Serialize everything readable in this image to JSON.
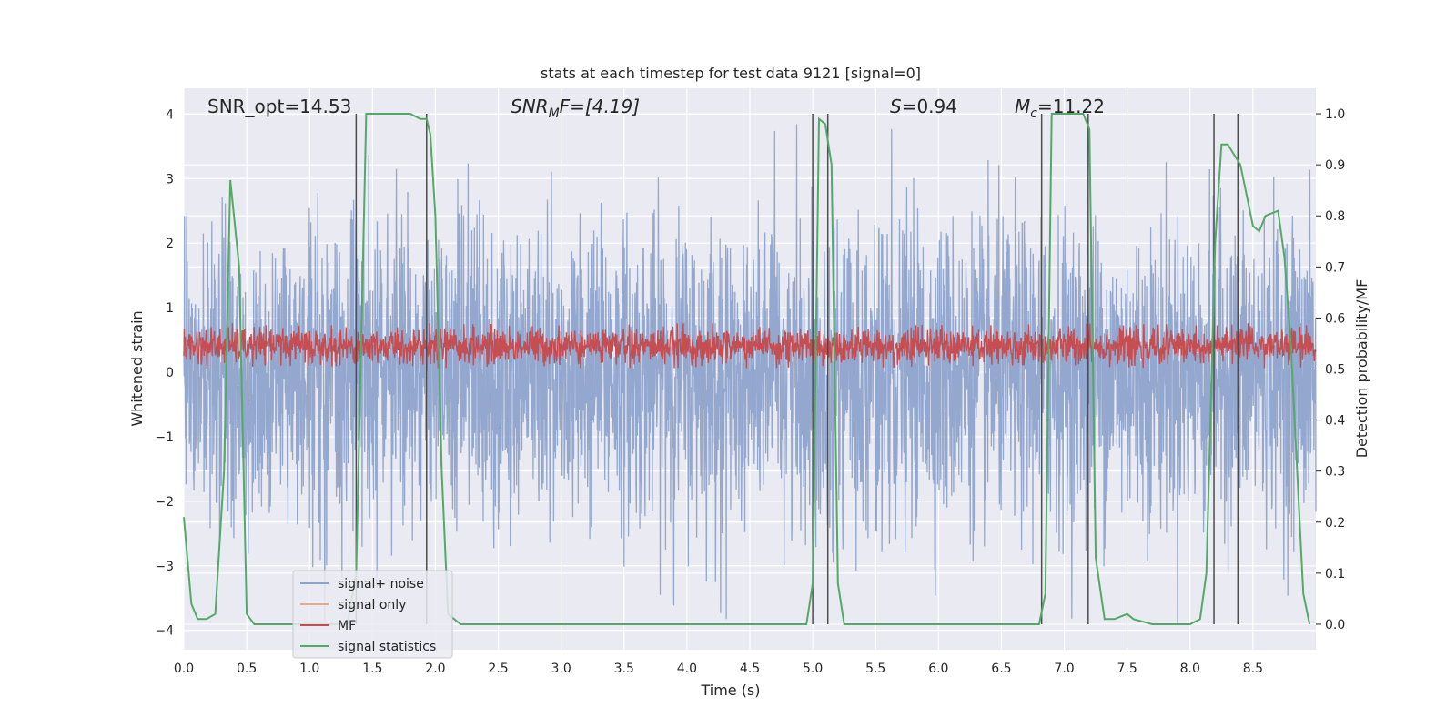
{
  "chart_data": {
    "type": "line",
    "title": "stats at each timestep for test data 9121 [signal=0]",
    "xlabel": "Time (s)",
    "ylabel": "Whitened strain",
    "y2label": "Detection probability/MF",
    "xlim": [
      0,
      9.0
    ],
    "ylim": [
      -4.3,
      4.4
    ],
    "y2lim": [
      -0.05,
      1.05
    ],
    "xticks": [
      0.0,
      0.5,
      1.0,
      1.5,
      2.0,
      2.5,
      3.0,
      3.5,
      4.0,
      4.5,
      5.0,
      5.5,
      6.0,
      6.5,
      7.0,
      7.5,
      8.0,
      8.5
    ],
    "xtick_labels": [
      "0.0",
      "0.5",
      "1.0",
      "1.5",
      "2.0",
      "2.5",
      "3.0",
      "3.5",
      "4.0",
      "4.5",
      "5.0",
      "5.5",
      "6.0",
      "6.5",
      "7.0",
      "7.5",
      "8.0",
      "8.5"
    ],
    "yticks": [
      -4,
      -3,
      -2,
      -1,
      0,
      1,
      2,
      3,
      4
    ],
    "ytick_labels": [
      "−4",
      "−3",
      "−2",
      "−1",
      "0",
      "1",
      "2",
      "3",
      "4"
    ],
    "y2ticks": [
      0.0,
      0.1,
      0.2,
      0.3,
      0.4,
      0.5,
      0.6,
      0.7,
      0.8,
      0.9,
      1.0
    ],
    "y2tick_labels": [
      "0.0",
      "0.1",
      "0.2",
      "0.3",
      "0.4",
      "0.5",
      "0.6",
      "0.7",
      "0.8",
      "0.9",
      "1.0"
    ],
    "grid": true,
    "legend_position": "lower-left",
    "annotations": {
      "snr_opt": "SNR_opt=14.53",
      "snr_mf_sym": "SNR",
      "snr_mf_sub": "M",
      "snr_mf_rest": "F=[4.19]",
      "s_sym": "S",
      "s_rest": "=0.94",
      "mc_sym": "M",
      "mc_sub": "c",
      "mc_rest": "=11.22"
    },
    "noise_envelope": {
      "description": "signal+noise whitened strain, dense noise band",
      "core_range": [
        -2.2,
        2.2
      ],
      "peak_range": [
        -3.9,
        3.9
      ]
    },
    "series": [
      {
        "name": "signal+ noise",
        "color": "#8ea3cc",
        "axis": "left",
        "kind": "noise",
        "band": [
          -3.9,
          3.9
        ]
      },
      {
        "name": "signal only",
        "color": "#e8a98b",
        "axis": "left",
        "kind": "line",
        "x": [],
        "y": []
      },
      {
        "name": "MF",
        "color": "#c44e52",
        "axis": "right",
        "kind": "noise",
        "band": [
          0.5,
          0.59
        ]
      },
      {
        "name": "signal statistics",
        "color": "#55a868",
        "axis": "right",
        "kind": "line",
        "x": [
          0.0,
          0.06,
          0.11,
          0.18,
          0.25,
          0.32,
          0.37,
          0.44,
          0.5,
          0.56,
          0.7,
          0.9,
          1.1,
          1.3,
          1.37,
          1.45,
          1.5,
          1.6,
          1.7,
          1.8,
          1.88,
          1.93,
          1.96,
          2.0,
          2.05,
          2.1,
          2.2,
          2.5,
          3.0,
          3.5,
          4.0,
          4.5,
          4.95,
          5.0,
          5.05,
          5.1,
          5.15,
          5.2,
          5.25,
          5.4,
          5.8,
          6.2,
          6.6,
          6.8,
          6.85,
          6.9,
          6.95,
          7.05,
          7.1,
          7.15,
          7.2,
          7.25,
          7.32,
          7.4,
          7.5,
          7.55,
          7.7,
          7.8,
          7.9,
          8.0,
          8.08,
          8.13,
          8.2,
          8.25,
          8.3,
          8.4,
          8.5,
          8.55,
          8.6,
          8.7,
          8.75,
          8.8,
          8.9,
          8.95
        ],
        "y": [
          0.21,
          0.04,
          0.01,
          0.01,
          0.02,
          0.3,
          0.87,
          0.7,
          0.02,
          0.0,
          0.0,
          0.0,
          0.0,
          0.0,
          0.1,
          1.0,
          1.0,
          1.0,
          1.0,
          1.0,
          0.99,
          0.99,
          0.96,
          0.8,
          0.3,
          0.02,
          0.0,
          0.0,
          0.0,
          0.0,
          0.0,
          0.0,
          0.0,
          0.08,
          0.99,
          0.98,
          0.9,
          0.08,
          0.0,
          0.0,
          0.0,
          0.0,
          0.0,
          0.0,
          0.06,
          1.0,
          1.0,
          1.0,
          1.0,
          1.0,
          0.97,
          0.13,
          0.01,
          0.01,
          0.02,
          0.01,
          0.0,
          0.0,
          0.0,
          0.0,
          0.01,
          0.1,
          0.75,
          0.94,
          0.94,
          0.9,
          0.78,
          0.77,
          0.8,
          0.81,
          0.72,
          0.55,
          0.06,
          0.0
        ]
      }
    ],
    "vertical_markers": [
      1.37,
      1.93,
      5.0,
      5.12,
      6.82,
      7.19,
      8.19,
      8.38
    ]
  },
  "colors": {
    "axes_background": "#eaeaf2",
    "grid": "#ffffff",
    "marker_line": "#4d4d4d"
  }
}
